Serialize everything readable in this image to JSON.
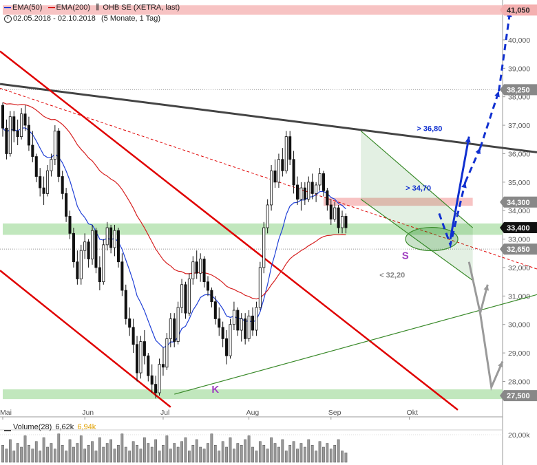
{
  "header": {
    "ema50_label": "EMA(50)",
    "ema200_label": "EMA(200)",
    "security_label": "OHB SE (XETRA, last)",
    "period_label": "02.05.2018 - 02.10.2018",
    "interval_label": "(5 Monate, 1 Tag)"
  },
  "volume_header": {
    "label": "Volume(28)",
    "value1": "6,62k",
    "value2": "6,94k"
  },
  "colors": {
    "ema50": "#1f3fd6",
    "ema200": "#d62020",
    "support_zone": "#b6e3b2",
    "resistance_zone": "#f6b8b8",
    "trend_dark": "#444444",
    "trend_red": "#e00000",
    "trend_green": "#3a8a2a",
    "arrow_blue": "#1030d0",
    "arrow_gray": "#9a9a9a"
  },
  "chart_data": {
    "type": "candlestick",
    "title": "OHB SE (XETRA, last)",
    "period": "02.05.2018 - 02.10.2018",
    "ylim": [
      26.9,
      41.4
    ],
    "y_ticks": [
      "40,000",
      "39,000",
      "38,000",
      "37,000",
      "36,000",
      "35,000",
      "34,000",
      "33,000",
      "32,000",
      "31,000",
      "30,000",
      "29,000",
      "28,000"
    ],
    "y_tick_values": [
      40,
      39,
      38,
      37,
      36,
      35,
      34,
      33,
      32,
      31,
      30,
      29,
      28
    ],
    "x_ticks": [
      "Mai",
      "Jun",
      "Jul",
      "Aug",
      "Sep",
      "Okt"
    ],
    "x_tick_days": [
      0,
      22,
      43,
      66,
      88,
      109
    ],
    "x_max_day": 134,
    "price_markers": [
      {
        "label": "41,050",
        "value": 41.05,
        "style": "pink"
      },
      {
        "label": "38,250",
        "value": 38.25,
        "style": "gray"
      },
      {
        "label": "34,300",
        "value": 34.3,
        "style": "gray"
      },
      {
        "label": "33,400",
        "value": 33.4,
        "style": "black"
      },
      {
        "label": "32,650",
        "value": 32.65,
        "style": "gray"
      },
      {
        "label": "27,500",
        "value": 27.5,
        "style": "gray"
      }
    ],
    "zones": [
      {
        "kind": "resistance",
        "from": 40.88,
        "to": 41.22,
        "x0": 0,
        "x1": 134
      },
      {
        "kind": "resistance",
        "from": 34.17,
        "to": 34.45,
        "x0": 86,
        "x1": 126
      },
      {
        "kind": "support",
        "from": 33.15,
        "to": 33.55,
        "x0": 0,
        "x1": 134
      },
      {
        "kind": "support",
        "from": 27.38,
        "to": 27.72,
        "x0": 0,
        "x1": 134
      }
    ],
    "annotations": [
      {
        "text": "> 36,80",
        "day": 111,
        "value": 36.8,
        "color": "#1030d0"
      },
      {
        "text": "> 34,70",
        "day": 108,
        "value": 34.7,
        "color": "#1030d0"
      },
      {
        "text": "< 32,20",
        "day": 101,
        "value": 31.65,
        "color": "#888888"
      },
      {
        "text": "S",
        "day": 107,
        "value": 32.3,
        "color": "#a040c0"
      },
      {
        "text": "K",
        "day": 56,
        "value": 27.6,
        "color": "#a040c0"
      }
    ],
    "candles": [
      [
        37.7,
        37.8,
        36.6,
        36.9
      ],
      [
        36.9,
        37.2,
        35.8,
        36.0
      ],
      [
        36.0,
        37.5,
        35.9,
        37.3
      ],
      [
        37.3,
        37.5,
        36.4,
        36.8
      ],
      [
        36.8,
        37.2,
        36.3,
        36.6
      ],
      [
        36.6,
        37.6,
        36.5,
        37.4
      ],
      [
        37.4,
        37.7,
        36.8,
        37.0
      ],
      [
        37.0,
        37.3,
        36.1,
        36.3
      ],
      [
        36.3,
        36.8,
        35.7,
        35.9
      ],
      [
        35.9,
        36.0,
        35.0,
        35.2
      ],
      [
        35.2,
        35.5,
        34.5,
        34.8
      ],
      [
        34.8,
        35.2,
        34.2,
        34.6
      ],
      [
        34.6,
        35.6,
        34.5,
        35.4
      ],
      [
        35.4,
        36.0,
        35.2,
        35.8
      ],
      [
        35.8,
        37.0,
        35.6,
        36.8
      ],
      [
        36.8,
        36.9,
        35.0,
        35.2
      ],
      [
        35.2,
        35.4,
        34.4,
        34.6
      ],
      [
        34.6,
        34.8,
        33.6,
        33.8
      ],
      [
        33.8,
        34.0,
        33.0,
        33.2
      ],
      [
        33.2,
        33.4,
        32.0,
        32.2
      ],
      [
        32.2,
        32.6,
        31.4,
        31.6
      ],
      [
        31.6,
        32.8,
        31.4,
        32.6
      ],
      [
        32.6,
        33.2,
        32.3,
        32.9
      ],
      [
        32.9,
        33.0,
        32.0,
        32.3
      ],
      [
        32.3,
        33.5,
        32.1,
        33.3
      ],
      [
        33.3,
        33.4,
        31.8,
        32.0
      ],
      [
        32.0,
        32.4,
        31.2,
        31.5
      ],
      [
        31.5,
        33.0,
        31.4,
        32.8
      ],
      [
        32.8,
        33.6,
        32.6,
        33.4
      ],
      [
        33.4,
        33.5,
        32.5,
        32.7
      ],
      [
        32.7,
        33.5,
        32.4,
        33.3
      ],
      [
        33.3,
        33.4,
        32.0,
        32.2
      ],
      [
        32.2,
        32.5,
        31.0,
        31.2
      ],
      [
        31.2,
        31.4,
        30.0,
        30.2
      ],
      [
        30.2,
        30.6,
        29.6,
        29.9
      ],
      [
        29.9,
        30.2,
        29.0,
        29.3
      ],
      [
        29.3,
        29.6,
        28.0,
        28.3
      ],
      [
        28.3,
        29.6,
        28.1,
        29.4
      ],
      [
        29.4,
        29.8,
        28.6,
        28.9
      ],
      [
        28.9,
        29.0,
        28.0,
        28.2
      ],
      [
        28.2,
        28.6,
        27.6,
        27.9
      ],
      [
        27.9,
        28.2,
        27.4,
        27.6
      ],
      [
        27.6,
        28.8,
        27.5,
        28.6
      ],
      [
        28.6,
        29.2,
        28.2,
        28.5
      ],
      [
        28.5,
        29.7,
        28.4,
        29.5
      ],
      [
        29.5,
        30.4,
        29.2,
        30.2
      ],
      [
        30.2,
        30.4,
        29.2,
        29.4
      ],
      [
        29.4,
        30.8,
        29.3,
        30.6
      ],
      [
        30.6,
        31.6,
        30.4,
        31.4
      ],
      [
        31.4,
        31.5,
        30.2,
        30.4
      ],
      [
        30.4,
        31.8,
        30.3,
        31.6
      ],
      [
        31.6,
        32.4,
        31.4,
        32.2
      ],
      [
        32.2,
        32.6,
        31.6,
        31.8
      ],
      [
        31.8,
        32.5,
        31.5,
        32.3
      ],
      [
        32.3,
        32.4,
        31.3,
        31.5
      ],
      [
        31.5,
        31.7,
        31.0,
        31.2
      ],
      [
        31.2,
        31.3,
        30.6,
        30.8
      ],
      [
        30.8,
        31.0,
        30.0,
        30.2
      ],
      [
        30.2,
        30.6,
        29.6,
        29.9
      ],
      [
        29.9,
        30.1,
        29.2,
        29.5
      ],
      [
        29.5,
        29.8,
        28.6,
        28.9
      ],
      [
        28.9,
        30.2,
        28.8,
        30.0
      ],
      [
        30.0,
        30.8,
        29.8,
        30.5
      ],
      [
        30.5,
        30.6,
        29.6,
        29.8
      ],
      [
        29.8,
        30.4,
        29.4,
        30.2
      ],
      [
        30.2,
        30.4,
        29.3,
        29.5
      ],
      [
        29.5,
        30.5,
        29.4,
        30.3
      ],
      [
        30.3,
        30.6,
        29.6,
        29.8
      ],
      [
        29.8,
        30.8,
        29.6,
        30.6
      ],
      [
        30.6,
        32.2,
        30.5,
        32.0
      ],
      [
        32.0,
        33.6,
        31.8,
        33.4
      ],
      [
        33.4,
        34.4,
        33.2,
        34.2
      ],
      [
        34.2,
        35.6,
        34.0,
        35.4
      ],
      [
        35.4,
        35.8,
        34.8,
        35.0
      ],
      [
        35.0,
        36.0,
        34.8,
        35.8
      ],
      [
        35.8,
        36.2,
        35.2,
        35.4
      ],
      [
        35.4,
        36.8,
        35.3,
        36.6
      ],
      [
        36.6,
        36.8,
        35.6,
        35.8
      ],
      [
        35.8,
        36.1,
        34.6,
        34.9
      ],
      [
        34.9,
        35.2,
        34.2,
        34.4
      ],
      [
        34.4,
        35.0,
        34.0,
        34.8
      ],
      [
        34.8,
        35.0,
        34.2,
        34.4
      ],
      [
        34.4,
        35.2,
        34.3,
        35.0
      ],
      [
        35.0,
        35.3,
        34.4,
        34.6
      ],
      [
        34.6,
        35.0,
        34.3,
        34.9
      ],
      [
        34.9,
        35.5,
        34.7,
        35.3
      ],
      [
        35.3,
        35.4,
        34.5,
        34.7
      ],
      [
        34.7,
        34.8,
        34.0,
        34.2
      ],
      [
        34.2,
        34.4,
        33.5,
        33.7
      ],
      [
        33.7,
        34.3,
        33.6,
        34.1
      ],
      [
        34.1,
        34.2,
        33.2,
        33.4
      ],
      [
        33.4,
        34.0,
        33.2,
        33.8
      ],
      [
        33.8,
        33.9,
        33.2,
        33.4
      ]
    ],
    "volume_ticks": [
      "20,00k"
    ],
    "volume_tick_values": [
      20
    ],
    "volume": [
      9,
      7,
      12,
      6,
      10,
      8,
      14,
      9,
      7,
      11,
      6,
      13,
      8,
      10,
      7,
      15,
      9,
      6,
      12,
      8,
      10,
      14,
      7,
      9,
      11,
      6,
      13,
      8,
      10,
      12,
      7,
      9,
      15,
      8,
      6,
      11,
      9,
      7,
      13,
      10,
      8,
      12,
      6,
      9,
      14,
      7,
      10,
      8,
      11,
      13,
      6,
      9,
      12,
      8,
      7,
      10,
      15,
      9,
      6,
      11,
      8,
      13,
      7,
      10,
      9,
      12,
      14,
      8,
      6,
      11,
      9,
      7,
      13,
      10,
      8,
      12,
      6,
      9,
      11,
      7,
      10,
      8,
      12,
      9,
      6,
      11,
      8,
      10,
      7,
      9,
      12,
      6,
      5
    ]
  }
}
